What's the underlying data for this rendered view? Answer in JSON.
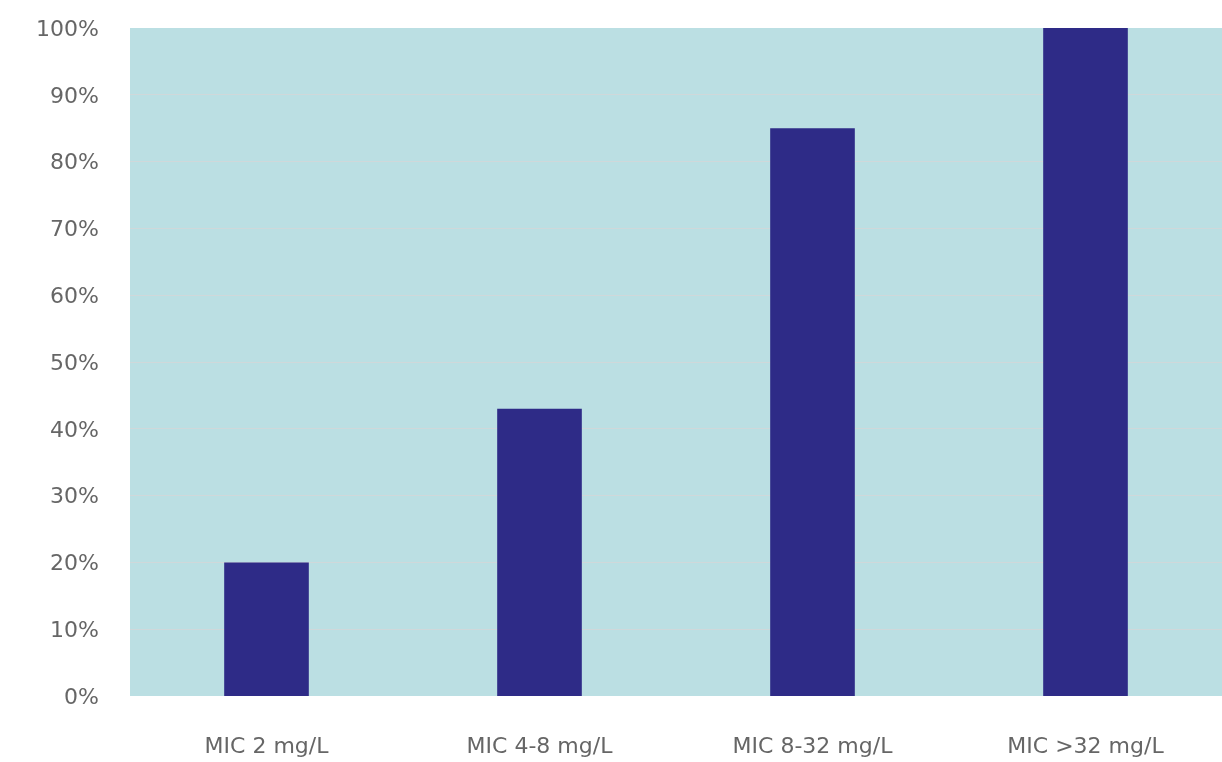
{
  "chart_data": {
    "type": "bar",
    "categories": [
      "MIC 2 mg/L",
      "MIC 4-8 mg/L",
      "MIC 8-32 mg/L",
      "MIC >32 mg/L"
    ],
    "values": [
      20,
      43,
      85,
      100
    ],
    "color": "#2e2b87",
    "ylim": [
      0,
      100
    ],
    "yticks": [
      {
        "value": 0,
        "label": "0%"
      },
      {
        "value": 10,
        "label": "10%"
      },
      {
        "value": 20,
        "label": "20%"
      },
      {
        "value": 30,
        "label": "30%"
      },
      {
        "value": 40,
        "label": "40%"
      },
      {
        "value": 50,
        "label": "50%"
      },
      {
        "value": 60,
        "label": "60%"
      },
      {
        "value": 70,
        "label": "70%"
      },
      {
        "value": 80,
        "label": "80%"
      },
      {
        "value": 90,
        "label": "90%"
      },
      {
        "value": 100,
        "label": "100%"
      }
    ],
    "grid": "y"
  }
}
